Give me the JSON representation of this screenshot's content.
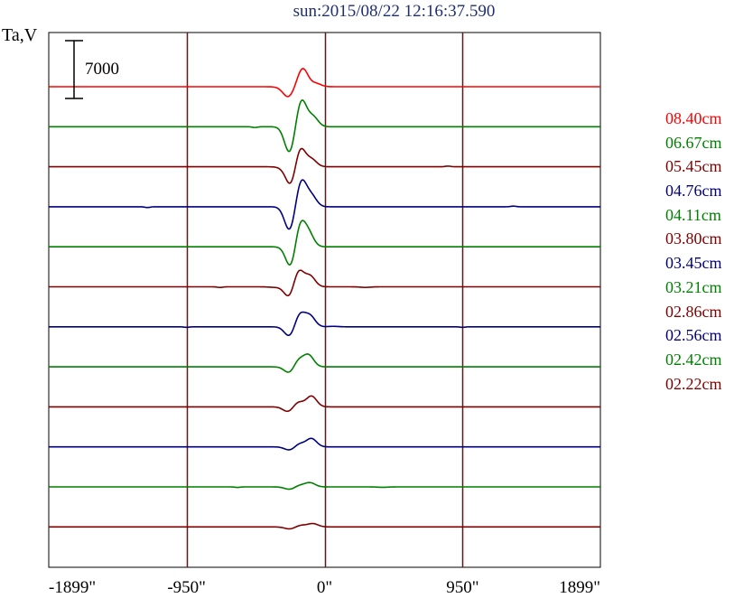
{
  "header": {
    "title": "sun:2015/08/22 12:16:37.590"
  },
  "chart_data": {
    "type": "line",
    "title": "sun:2015/08/22 12:16:37.590",
    "ylabel": "Ta,V",
    "xlabel": "",
    "x_ticks": [
      "-1899\"",
      "-950\"",
      "0\"",
      "950\"",
      "1899\""
    ],
    "x_tick_values": [
      -1899,
      -950,
      0,
      950,
      1899
    ],
    "xlim": [
      -1899,
      1899
    ],
    "grid": "vertical",
    "scale_bar": {
      "label": "7000",
      "value": 7000
    },
    "legend_position": "right",
    "series": [
      {
        "name": "08.40cm",
        "color": "#ff0000",
        "peaks": [
          [
            -300,
            -60
          ],
          [
            -250,
            -1200
          ],
          [
            -150,
            2200
          ],
          [
            -60,
            400
          ]
        ]
      },
      {
        "name": "06.67cm",
        "color": "#008000",
        "peaks": [
          [
            -480,
            -90
          ],
          [
            -240,
            -3200
          ],
          [
            -160,
            3300
          ],
          [
            -80,
            1200
          ]
        ]
      },
      {
        "name": "05.45cm",
        "color": "#800000",
        "peaks": [
          [
            -290,
            -100
          ],
          [
            -230,
            -2400
          ],
          [
            -170,
            2500
          ],
          [
            -90,
            900
          ],
          [
            850,
            80
          ]
        ]
      },
      {
        "name": "04.76cm",
        "color": "#000080",
        "peaks": [
          [
            -1220,
            -90
          ],
          [
            -240,
            -2900
          ],
          [
            -160,
            3200
          ],
          [
            -90,
            1300
          ],
          [
            1300,
            80
          ]
        ]
      },
      {
        "name": "04.11cm",
        "color": "#008000",
        "peaks": [
          [
            -230,
            -2700
          ],
          [
            -170,
            3000
          ],
          [
            -110,
            1600
          ]
        ]
      },
      {
        "name": "03.80cm",
        "color": "#800000",
        "peaks": [
          [
            -720,
            -80
          ],
          [
            -350,
            -60
          ],
          [
            -240,
            -1400
          ],
          [
            -180,
            2100
          ],
          [
            -100,
            1300
          ],
          [
            280,
            -70
          ]
        ]
      },
      {
        "name": "03.45cm",
        "color": "#000080",
        "peaks": [
          [
            -950,
            -60
          ],
          [
            -240,
            -1200
          ],
          [
            -170,
            1600
          ],
          [
            -100,
            1300
          ],
          [
            60,
            60
          ],
          [
            950,
            -60
          ]
        ]
      },
      {
        "name": "03.21cm",
        "color": "#008000",
        "peaks": [
          [
            -240,
            -800
          ],
          [
            -180,
            900
          ],
          [
            -110,
            1400
          ]
        ]
      },
      {
        "name": "02.86cm",
        "color": "#800000",
        "peaks": [
          [
            -250,
            -600
          ],
          [
            -180,
            600
          ],
          [
            -90,
            1300
          ]
        ]
      },
      {
        "name": "02.56cm",
        "color": "#000080",
        "peaks": [
          [
            -240,
            -400
          ],
          [
            -170,
            400
          ],
          [
            -90,
            1000
          ]
        ]
      },
      {
        "name": "02.42cm",
        "color": "#008000",
        "peaks": [
          [
            -600,
            -60
          ],
          [
            -240,
            -300
          ],
          [
            -170,
            200
          ],
          [
            -100,
            500
          ],
          [
            400,
            -50
          ]
        ]
      },
      {
        "name": "02.22cm",
        "color": "#800000",
        "peaks": [
          [
            -240,
            -250
          ],
          [
            -160,
            200
          ],
          [
            -80,
            400
          ]
        ]
      }
    ]
  }
}
